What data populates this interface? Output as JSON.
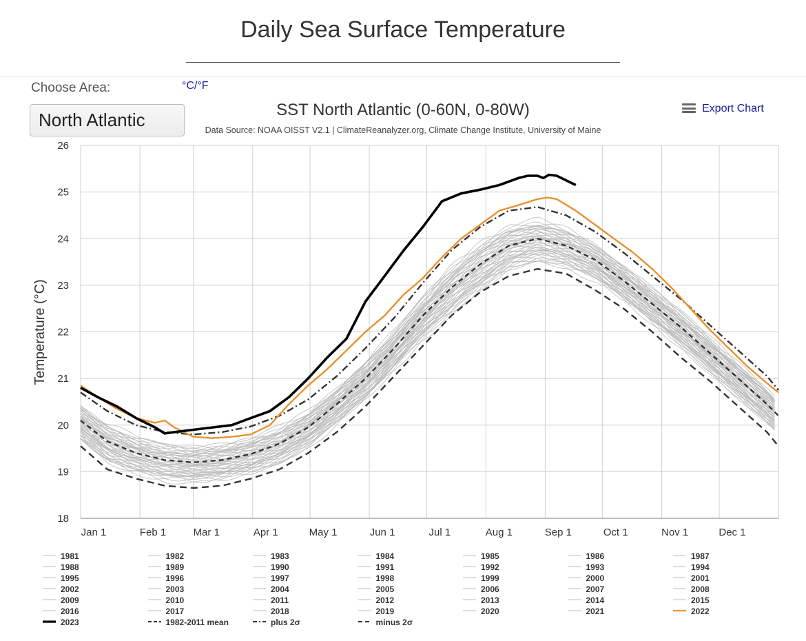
{
  "page": {
    "title": "Daily Sea Surface Temperature",
    "choose_area_label": "Choose Area:",
    "unit_toggle": "°C/°F",
    "area_selected": "North Atlantic",
    "export_label": "Export Chart"
  },
  "chart_data": {
    "type": "line",
    "title": "SST North Atlantic (0-60N, 0-80W)",
    "subtitle": "Data Source: NOAA OISST V2.1 | ClimateReanalyzer.org, Climate Change Institute, University of Maine",
    "ylabel": "Temperature (°C)",
    "xlabel": "",
    "ylim": [
      18,
      26
    ],
    "yticks": [
      18,
      19,
      20,
      21,
      22,
      23,
      24,
      25,
      26
    ],
    "xlim": [
      1,
      366
    ],
    "xticks": [
      {
        "label": "Jan 1",
        "day": 1
      },
      {
        "label": "Feb 1",
        "day": 32
      },
      {
        "label": "Mar 1",
        "day": 60
      },
      {
        "label": "Apr 1",
        "day": 91
      },
      {
        "label": "May 1",
        "day": 121
      },
      {
        "label": "Jun 1",
        "day": 152
      },
      {
        "label": "Jul 1",
        "day": 182
      },
      {
        "label": "Aug 1",
        "day": 213
      },
      {
        "label": "Sep 1",
        "day": 244
      },
      {
        "label": "Oct 1",
        "day": 274
      },
      {
        "label": "Nov 1",
        "day": 305
      },
      {
        "label": "Dec 1",
        "day": 335
      }
    ],
    "grid": true,
    "legend_position": "bottom",
    "colors": {
      "year_2023": "#000000",
      "year_2022": "#e8912e",
      "other_years": "#b4b4b4",
      "stat_lines": "#333333"
    },
    "series": [
      {
        "name": "2023",
        "color": "#000000",
        "style": "solid-bold",
        "x": [
          1,
          10,
          20,
          30,
          40,
          45,
          50,
          60,
          70,
          80,
          90,
          100,
          110,
          120,
          130,
          140,
          150,
          160,
          170,
          180,
          190,
          200,
          210,
          220,
          230,
          235,
          240,
          243,
          246,
          250,
          255,
          260
        ],
        "y": [
          20.8,
          20.6,
          20.4,
          20.15,
          19.95,
          19.82,
          19.85,
          19.9,
          19.95,
          20.0,
          20.15,
          20.3,
          20.6,
          21.0,
          21.45,
          21.85,
          22.65,
          23.2,
          23.75,
          24.25,
          24.8,
          24.97,
          25.05,
          25.15,
          25.3,
          25.35,
          25.35,
          25.3,
          25.37,
          25.35,
          25.25,
          25.15
        ]
      },
      {
        "name": "2022",
        "color": "#e8912e",
        "style": "solid",
        "x": [
          1,
          10,
          20,
          30,
          40,
          45,
          50,
          60,
          70,
          80,
          90,
          100,
          110,
          120,
          130,
          140,
          150,
          160,
          170,
          180,
          190,
          200,
          210,
          220,
          230,
          240,
          245,
          250,
          260,
          270,
          280,
          290,
          300,
          310,
          320,
          330,
          340,
          350,
          360,
          366
        ],
        "y": [
          20.85,
          20.6,
          20.35,
          20.15,
          20.05,
          20.1,
          19.95,
          19.75,
          19.72,
          19.75,
          19.8,
          20.0,
          20.45,
          20.85,
          21.2,
          21.6,
          22.0,
          22.35,
          22.8,
          23.15,
          23.6,
          24.0,
          24.3,
          24.6,
          24.72,
          24.85,
          24.88,
          24.85,
          24.6,
          24.3,
          24.0,
          23.7,
          23.35,
          22.95,
          22.5,
          22.05,
          21.65,
          21.25,
          20.9,
          20.7
        ]
      },
      {
        "name": "1982-2011 mean",
        "color": "#333333",
        "style": "dashed",
        "x": [
          1,
          15,
          30,
          45,
          60,
          75,
          90,
          105,
          120,
          135,
          150,
          165,
          180,
          195,
          210,
          225,
          240,
          255,
          270,
          285,
          300,
          315,
          330,
          345,
          360,
          366
        ],
        "y": [
          20.1,
          19.65,
          19.4,
          19.25,
          19.2,
          19.25,
          19.38,
          19.6,
          19.95,
          20.45,
          21.0,
          21.65,
          22.35,
          22.95,
          23.45,
          23.85,
          24.0,
          23.85,
          23.55,
          23.1,
          22.6,
          22.1,
          21.55,
          21.0,
          20.45,
          20.2
        ]
      },
      {
        "name": "plus 2σ",
        "color": "#333333",
        "style": "dashdot",
        "x": [
          1,
          15,
          30,
          45,
          60,
          75,
          90,
          105,
          120,
          135,
          150,
          165,
          180,
          195,
          210,
          225,
          240,
          255,
          270,
          285,
          300,
          315,
          330,
          345,
          360,
          366
        ],
        "y": [
          20.7,
          20.3,
          20.0,
          19.85,
          19.8,
          19.85,
          19.97,
          20.2,
          20.55,
          21.05,
          21.65,
          22.3,
          23.05,
          23.75,
          24.25,
          24.6,
          24.68,
          24.5,
          24.15,
          23.7,
          23.2,
          22.7,
          22.15,
          21.6,
          21.05,
          20.75
        ]
      },
      {
        "name": "minus 2σ",
        "color": "#333333",
        "style": "dashed-long",
        "x": [
          1,
          15,
          30,
          45,
          60,
          75,
          90,
          105,
          120,
          135,
          150,
          165,
          180,
          195,
          210,
          225,
          240,
          255,
          270,
          285,
          300,
          315,
          330,
          345,
          360,
          366
        ],
        "y": [
          19.55,
          19.05,
          18.85,
          18.7,
          18.65,
          18.7,
          18.85,
          19.05,
          19.4,
          19.85,
          20.4,
          21.05,
          21.7,
          22.35,
          22.85,
          23.2,
          23.35,
          23.25,
          22.9,
          22.5,
          22.0,
          21.45,
          20.95,
          20.4,
          19.85,
          19.55
        ]
      }
    ],
    "legend_entries": [
      "1981",
      "1982",
      "1983",
      "1984",
      "1985",
      "1986",
      "1987",
      "1988",
      "1989",
      "1990",
      "1991",
      "1992",
      "1993",
      "1994",
      "1995",
      "1996",
      "1997",
      "1998",
      "1999",
      "2000",
      "2001",
      "2002",
      "2003",
      "2004",
      "2005",
      "2006",
      "2007",
      "2008",
      "2009",
      "2010",
      "2011",
      "2012",
      "2013",
      "2014",
      "2015",
      "2016",
      "2017",
      "2018",
      "2019",
      "2020",
      "2021",
      "2022",
      "2023",
      "1982-2011 mean",
      "plus 2σ",
      "minus 2σ"
    ]
  }
}
